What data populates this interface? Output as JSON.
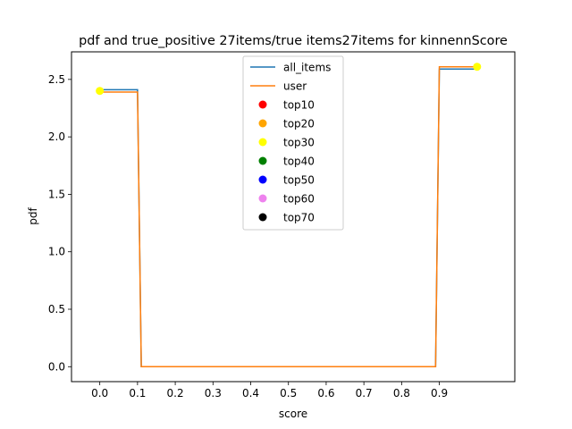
{
  "chart_data": {
    "type": "line",
    "title": "pdf and true_positive 27items/true items27items for kinnennScore",
    "xlabel": "score",
    "ylabel": "pdf",
    "xlim": [
      -0.075,
      1.1
    ],
    "ylim": [
      -0.13,
      2.74
    ],
    "xticks": [
      "0.0",
      "0.1",
      "0.2",
      "0.3",
      "0.4",
      "0.5",
      "0.6",
      "0.7",
      "0.8",
      "0.9"
    ],
    "xtick_values": [
      0.0,
      0.1,
      0.2,
      0.3,
      0.4,
      0.5,
      0.6,
      0.7,
      0.8,
      0.9
    ],
    "yticks": [
      "0.0",
      "0.5",
      "1.0",
      "1.5",
      "2.0",
      "2.5"
    ],
    "ytick_values": [
      0.0,
      0.5,
      1.0,
      1.5,
      2.0,
      2.5
    ],
    "legend_position": "top-center",
    "series": [
      {
        "name": "all_items",
        "color": "#1f77b4",
        "x": [
          0.0,
          0.1,
          0.11,
          0.89,
          0.9,
          1.0
        ],
        "y": [
          2.41,
          2.41,
          0.0,
          0.0,
          2.59,
          2.59
        ]
      },
      {
        "name": "user",
        "color": "#ff7f0e",
        "x": [
          0.0,
          0.1,
          0.11,
          0.89,
          0.9,
          1.0
        ],
        "y": [
          2.39,
          2.39,
          0.0,
          0.0,
          2.61,
          2.61
        ]
      }
    ],
    "markers": [
      {
        "name": "top10",
        "color": "#ff0000",
        "points": []
      },
      {
        "name": "top20",
        "color": "#ffa500",
        "points": []
      },
      {
        "name": "top30",
        "color": "#ffff00",
        "points": [
          [
            0.0,
            2.4
          ],
          [
            1.0,
            2.61
          ]
        ]
      },
      {
        "name": "top40",
        "color": "#008000",
        "points": []
      },
      {
        "name": "top50",
        "color": "#0000ff",
        "points": []
      },
      {
        "name": "top60",
        "color": "#ee82ee",
        "points": []
      },
      {
        "name": "top70",
        "color": "#000000",
        "points": []
      }
    ]
  }
}
